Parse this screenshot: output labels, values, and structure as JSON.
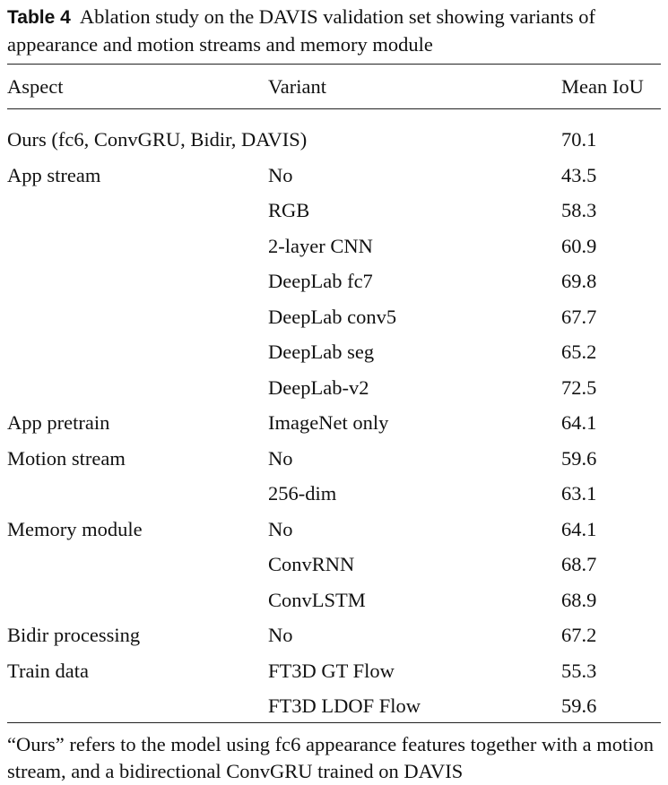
{
  "caption": {
    "label": "Table 4",
    "text": "Ablation study on the DAVIS validation set showing variants of appearance and motion streams and memory module"
  },
  "headers": {
    "aspect": "Aspect",
    "variant": "Variant",
    "miou": "Mean IoU"
  },
  "rows": [
    {
      "aspect": "Ours (fc6, ConvGRU, Bidir, DAVIS)",
      "variant": "",
      "miou": "70.1"
    },
    {
      "aspect": "App stream",
      "variant": "No",
      "miou": "43.5"
    },
    {
      "aspect": "",
      "variant": "RGB",
      "miou": "58.3"
    },
    {
      "aspect": "",
      "variant": "2-layer CNN",
      "miou": "60.9"
    },
    {
      "aspect": "",
      "variant": "DeepLab fc7",
      "miou": "69.8"
    },
    {
      "aspect": "",
      "variant": "DeepLab conv5",
      "miou": "67.7"
    },
    {
      "aspect": "",
      "variant": "DeepLab seg",
      "miou": "65.2"
    },
    {
      "aspect": "",
      "variant": "DeepLab-v2",
      "miou": "72.5"
    },
    {
      "aspect": "App pretrain",
      "variant": "ImageNet only",
      "miou": "64.1"
    },
    {
      "aspect": "Motion stream",
      "variant": "No",
      "miou": "59.6"
    },
    {
      "aspect": "",
      "variant": "256-dim",
      "miou": "63.1"
    },
    {
      "aspect": "Memory module",
      "variant": "No",
      "miou": "64.1"
    },
    {
      "aspect": "",
      "variant": "ConvRNN",
      "miou": "68.7"
    },
    {
      "aspect": "",
      "variant": "ConvLSTM",
      "miou": "68.9"
    },
    {
      "aspect": "Bidir processing",
      "variant": "No",
      "miou": "67.2"
    },
    {
      "aspect": "Train data",
      "variant": "FT3D GT Flow",
      "miou": "55.3"
    },
    {
      "aspect": "",
      "variant": "FT3D LDOF Flow",
      "miou": "59.6"
    }
  ],
  "footnote": "“Ours” refers to the model using fc6 appearance features together with a motion stream, and a bidirectional ConvGRU trained on DAVIS"
}
